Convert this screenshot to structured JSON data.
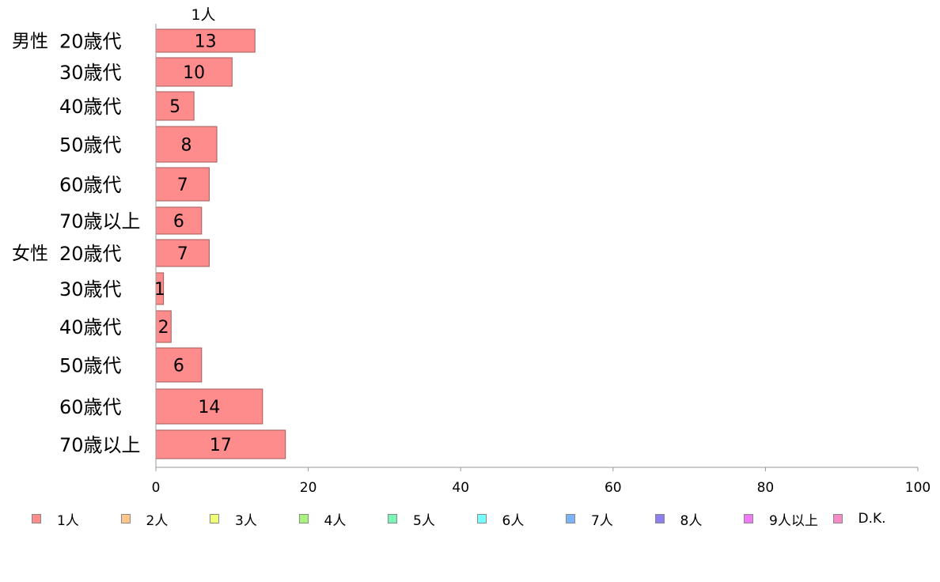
{
  "chart_data": {
    "type": "bar",
    "orientation": "horizontal",
    "stacked": true,
    "column_header": "1人",
    "groups": [
      {
        "label": "男性",
        "rows": [
          "20歳代",
          "30歳代",
          "40歳代",
          "50歳代",
          "60歳代",
          "70歳以上"
        ]
      },
      {
        "label": "女性",
        "rows": [
          "20歳代",
          "30歳代",
          "40歳代",
          "50歳代",
          "60歳代",
          "70歳以上"
        ]
      }
    ],
    "series": [
      {
        "name": "1人",
        "color": "#ff8c8c",
        "values": [
          13,
          10,
          5,
          8,
          7,
          6,
          7,
          1,
          2,
          6,
          14,
          17
        ]
      },
      {
        "name": "2人",
        "color": "#ffc68c",
        "values": []
      },
      {
        "name": "3人",
        "color": "#f0ff78",
        "values": []
      },
      {
        "name": "4人",
        "color": "#a6f57a",
        "values": []
      },
      {
        "name": "5人",
        "color": "#7af5b4",
        "values": []
      },
      {
        "name": "6人",
        "color": "#7affff",
        "values": []
      },
      {
        "name": "7人",
        "color": "#7ab4f5",
        "values": []
      },
      {
        "name": "8人",
        "color": "#8c80f0",
        "values": []
      },
      {
        "name": "9人以上",
        "color": "#f07af5",
        "values": []
      },
      {
        "name": "D.K.",
        "color": "#f58cc8",
        "values": []
      }
    ],
    "xlim": [
      0,
      100
    ],
    "xticks": [
      0,
      20,
      40,
      60,
      80,
      100
    ],
    "grid": false,
    "legend_position": "bottom"
  }
}
